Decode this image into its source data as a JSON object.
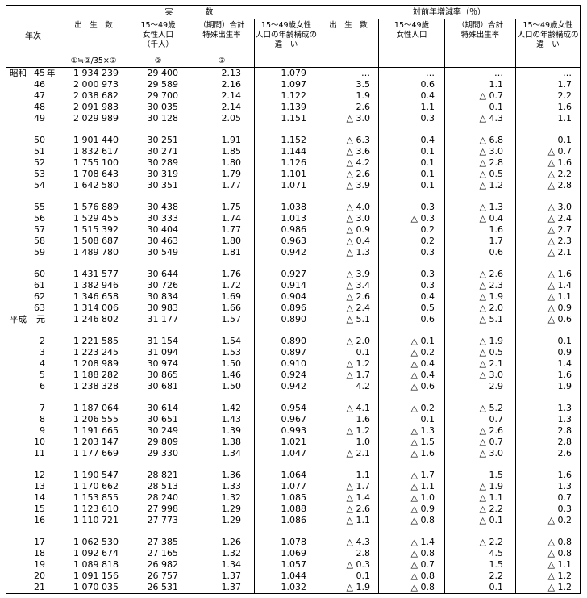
{
  "header": {
    "year_label": "年次",
    "group_actual": "実　　　　数",
    "group_rate": "対前年増減率（％）",
    "actual": [
      {
        "l1": "出　生　数",
        "l2": "",
        "l3": "",
        "mark": "①≒②/35×③"
      },
      {
        "l1": "15～49歳",
        "l2": "女性人口",
        "l3": "（千人）",
        "mark": "②"
      },
      {
        "l1": "（期間）合計",
        "l2": "特殊出生率",
        "l3": "",
        "mark": "③"
      },
      {
        "l1": "15～49歳女性",
        "l2": "人口の年齢構成の",
        "l3": "違　い",
        "mark": ""
      }
    ],
    "rate": [
      {
        "l1": "出　生　数",
        "l2": "",
        "l3": "",
        "mark": ""
      },
      {
        "l1": "15～49歳",
        "l2": "女性人口",
        "l3": "",
        "mark": ""
      },
      {
        "l1": "（期間）合計",
        "l2": "特殊出生率",
        "l3": "",
        "mark": ""
      },
      {
        "l1": "15～49歳女性",
        "l2": "人口の年齢構成の",
        "l3": "違　い",
        "mark": ""
      }
    ]
  },
  "groups": [
    [
      [
        "昭和",
        "45",
        "年",
        "1 934 239",
        "29 400",
        "2.13",
        "1.079",
        "…",
        "…",
        "…",
        "…"
      ],
      [
        "",
        "46",
        "",
        "2 000 973",
        "29 589",
        "2.16",
        "1.097",
        "3.5",
        "0.6",
        "1.1",
        "1.7"
      ],
      [
        "",
        "47",
        "",
        "2 038 682",
        "29 700",
        "2.14",
        "1.122",
        "1.9",
        "0.4",
        "△ 0.7",
        "2.2"
      ],
      [
        "",
        "48",
        "",
        "2 091 983",
        "30 035",
        "2.14",
        "1.139",
        "2.6",
        "1.1",
        "0.1",
        "1.6"
      ],
      [
        "",
        "49",
        "",
        "2 029 989",
        "30 128",
        "2.05",
        "1.151",
        "△ 3.0",
        "0.3",
        "△ 4.3",
        "1.1"
      ]
    ],
    [
      [
        "",
        "50",
        "",
        "1 901 440",
        "30 251",
        "1.91",
        "1.152",
        "△ 6.3",
        "0.4",
        "△ 6.8",
        "0.1"
      ],
      [
        "",
        "51",
        "",
        "1 832 617",
        "30 271",
        "1.85",
        "1.144",
        "△ 3.6",
        "0.1",
        "△ 3.0",
        "△ 0.7"
      ],
      [
        "",
        "52",
        "",
        "1 755 100",
        "30 289",
        "1.80",
        "1.126",
        "△ 4.2",
        "0.1",
        "△ 2.8",
        "△ 1.6"
      ],
      [
        "",
        "53",
        "",
        "1 708 643",
        "30 319",
        "1.79",
        "1.101",
        "△ 2.6",
        "0.1",
        "△ 0.5",
        "△ 2.2"
      ],
      [
        "",
        "54",
        "",
        "1 642 580",
        "30 351",
        "1.77",
        "1.071",
        "△ 3.9",
        "0.1",
        "△ 1.2",
        "△ 2.8"
      ]
    ],
    [
      [
        "",
        "55",
        "",
        "1 576 889",
        "30 438",
        "1.75",
        "1.038",
        "△ 4.0",
        "0.3",
        "△ 1.3",
        "△ 3.0"
      ],
      [
        "",
        "56",
        "",
        "1 529 455",
        "30 333",
        "1.74",
        "1.013",
        "△ 3.0",
        "△ 0.3",
        "△ 0.4",
        "△ 2.4"
      ],
      [
        "",
        "57",
        "",
        "1 515 392",
        "30 404",
        "1.77",
        "0.986",
        "△ 0.9",
        "0.2",
        "1.6",
        "△ 2.7"
      ],
      [
        "",
        "58",
        "",
        "1 508 687",
        "30 463",
        "1.80",
        "0.963",
        "△ 0.4",
        "0.2",
        "1.7",
        "△ 2.3"
      ],
      [
        "",
        "59",
        "",
        "1 489 780",
        "30 549",
        "1.81",
        "0.942",
        "△ 1.3",
        "0.3",
        "0.6",
        "△ 2.1"
      ]
    ],
    [
      [
        "",
        "60",
        "",
        "1 431 577",
        "30 644",
        "1.76",
        "0.927",
        "△ 3.9",
        "0.3",
        "△ 2.6",
        "△ 1.6"
      ],
      [
        "",
        "61",
        "",
        "1 382 946",
        "30 726",
        "1.72",
        "0.914",
        "△ 3.4",
        "0.3",
        "△ 2.3",
        "△ 1.4"
      ],
      [
        "",
        "62",
        "",
        "1 346 658",
        "30 834",
        "1.69",
        "0.904",
        "△ 2.6",
        "0.4",
        "△ 1.9",
        "△ 1.1"
      ],
      [
        "",
        "63",
        "",
        "1 314 006",
        "30 983",
        "1.66",
        "0.896",
        "△ 2.4",
        "0.5",
        "△ 2.0",
        "△ 0.9"
      ],
      [
        "平成",
        "元",
        "",
        "1 246 802",
        "31 177",
        "1.57",
        "0.890",
        "△ 5.1",
        "0.6",
        "△ 5.1",
        "△ 0.6"
      ]
    ],
    [
      [
        "",
        "2",
        "",
        "1 221 585",
        "31 154",
        "1.54",
        "0.890",
        "△ 2.0",
        "△ 0.1",
        "△ 1.9",
        "0.1"
      ],
      [
        "",
        "3",
        "",
        "1 223 245",
        "31 094",
        "1.53",
        "0.897",
        "0.1",
        "△ 0.2",
        "△ 0.5",
        "0.9"
      ],
      [
        "",
        "4",
        "",
        "1 208 989",
        "30 974",
        "1.50",
        "0.910",
        "△ 1.2",
        "△ 0.4",
        "△ 2.1",
        "1.4"
      ],
      [
        "",
        "5",
        "",
        "1 188 282",
        "30 865",
        "1.46",
        "0.924",
        "△ 1.7",
        "△ 0.4",
        "△ 3.0",
        "1.6"
      ],
      [
        "",
        "6",
        "",
        "1 238 328",
        "30 681",
        "1.50",
        "0.942",
        "4.2",
        "△ 0.6",
        "2.9",
        "1.9"
      ]
    ],
    [
      [
        "",
        "7",
        "",
        "1 187 064",
        "30 614",
        "1.42",
        "0.954",
        "△ 4.1",
        "△ 0.2",
        "△ 5.2",
        "1.3"
      ],
      [
        "",
        "8",
        "",
        "1 206 555",
        "30 651",
        "1.43",
        "0.967",
        "1.6",
        "0.1",
        "0.7",
        "1.3"
      ],
      [
        "",
        "9",
        "",
        "1 191 665",
        "30 249",
        "1.39",
        "0.993",
        "△ 1.2",
        "△ 1.3",
        "△ 2.6",
        "2.8"
      ],
      [
        "",
        "10",
        "",
        "1 203 147",
        "29 809",
        "1.38",
        "1.021",
        "1.0",
        "△ 1.5",
        "△ 0.7",
        "2.8"
      ],
      [
        "",
        "11",
        "",
        "1 177 669",
        "29 330",
        "1.34",
        "1.047",
        "△ 2.1",
        "△ 1.6",
        "△ 3.0",
        "2.6"
      ]
    ],
    [
      [
        "",
        "12",
        "",
        "1 190 547",
        "28 821",
        "1.36",
        "1.064",
        "1.1",
        "△ 1.7",
        "1.5",
        "1.6"
      ],
      [
        "",
        "13",
        "",
        "1 170 662",
        "28 513",
        "1.33",
        "1.077",
        "△ 1.7",
        "△ 1.1",
        "△ 1.9",
        "1.3"
      ],
      [
        "",
        "14",
        "",
        "1 153 855",
        "28 240",
        "1.32",
        "1.085",
        "△ 1.4",
        "△ 1.0",
        "△ 1.1",
        "0.7"
      ],
      [
        "",
        "15",
        "",
        "1 123 610",
        "27 998",
        "1.29",
        "1.088",
        "△ 2.6",
        "△ 0.9",
        "△ 2.2",
        "0.3"
      ],
      [
        "",
        "16",
        "",
        "1 110 721",
        "27 773",
        "1.29",
        "1.086",
        "△ 1.1",
        "△ 0.8",
        "△ 0.1",
        "△ 0.2"
      ]
    ],
    [
      [
        "",
        "17",
        "",
        "1 062 530",
        "27 385",
        "1.26",
        "1.078",
        "△ 4.3",
        "△ 1.4",
        "△ 2.2",
        "△ 0.8"
      ],
      [
        "",
        "18",
        "",
        "1 092 674",
        "27 165",
        "1.32",
        "1.069",
        "2.8",
        "△ 0.8",
        "4.5",
        "△ 0.8"
      ],
      [
        "",
        "19",
        "",
        "1 089 818",
        "26 982",
        "1.34",
        "1.057",
        "△ 0.3",
        "△ 0.7",
        "1.5",
        "△ 1.1"
      ],
      [
        "",
        "20",
        "",
        "1 091 156",
        "26 757",
        "1.37",
        "1.044",
        "0.1",
        "△ 0.8",
        "2.2",
        "△ 1.2"
      ],
      [
        "",
        "21",
        "",
        "1 070 035",
        "26 531",
        "1.37",
        "1.032",
        "△ 1.9",
        "△ 0.8",
        "0.1",
        "△ 1.2"
      ]
    ]
  ]
}
